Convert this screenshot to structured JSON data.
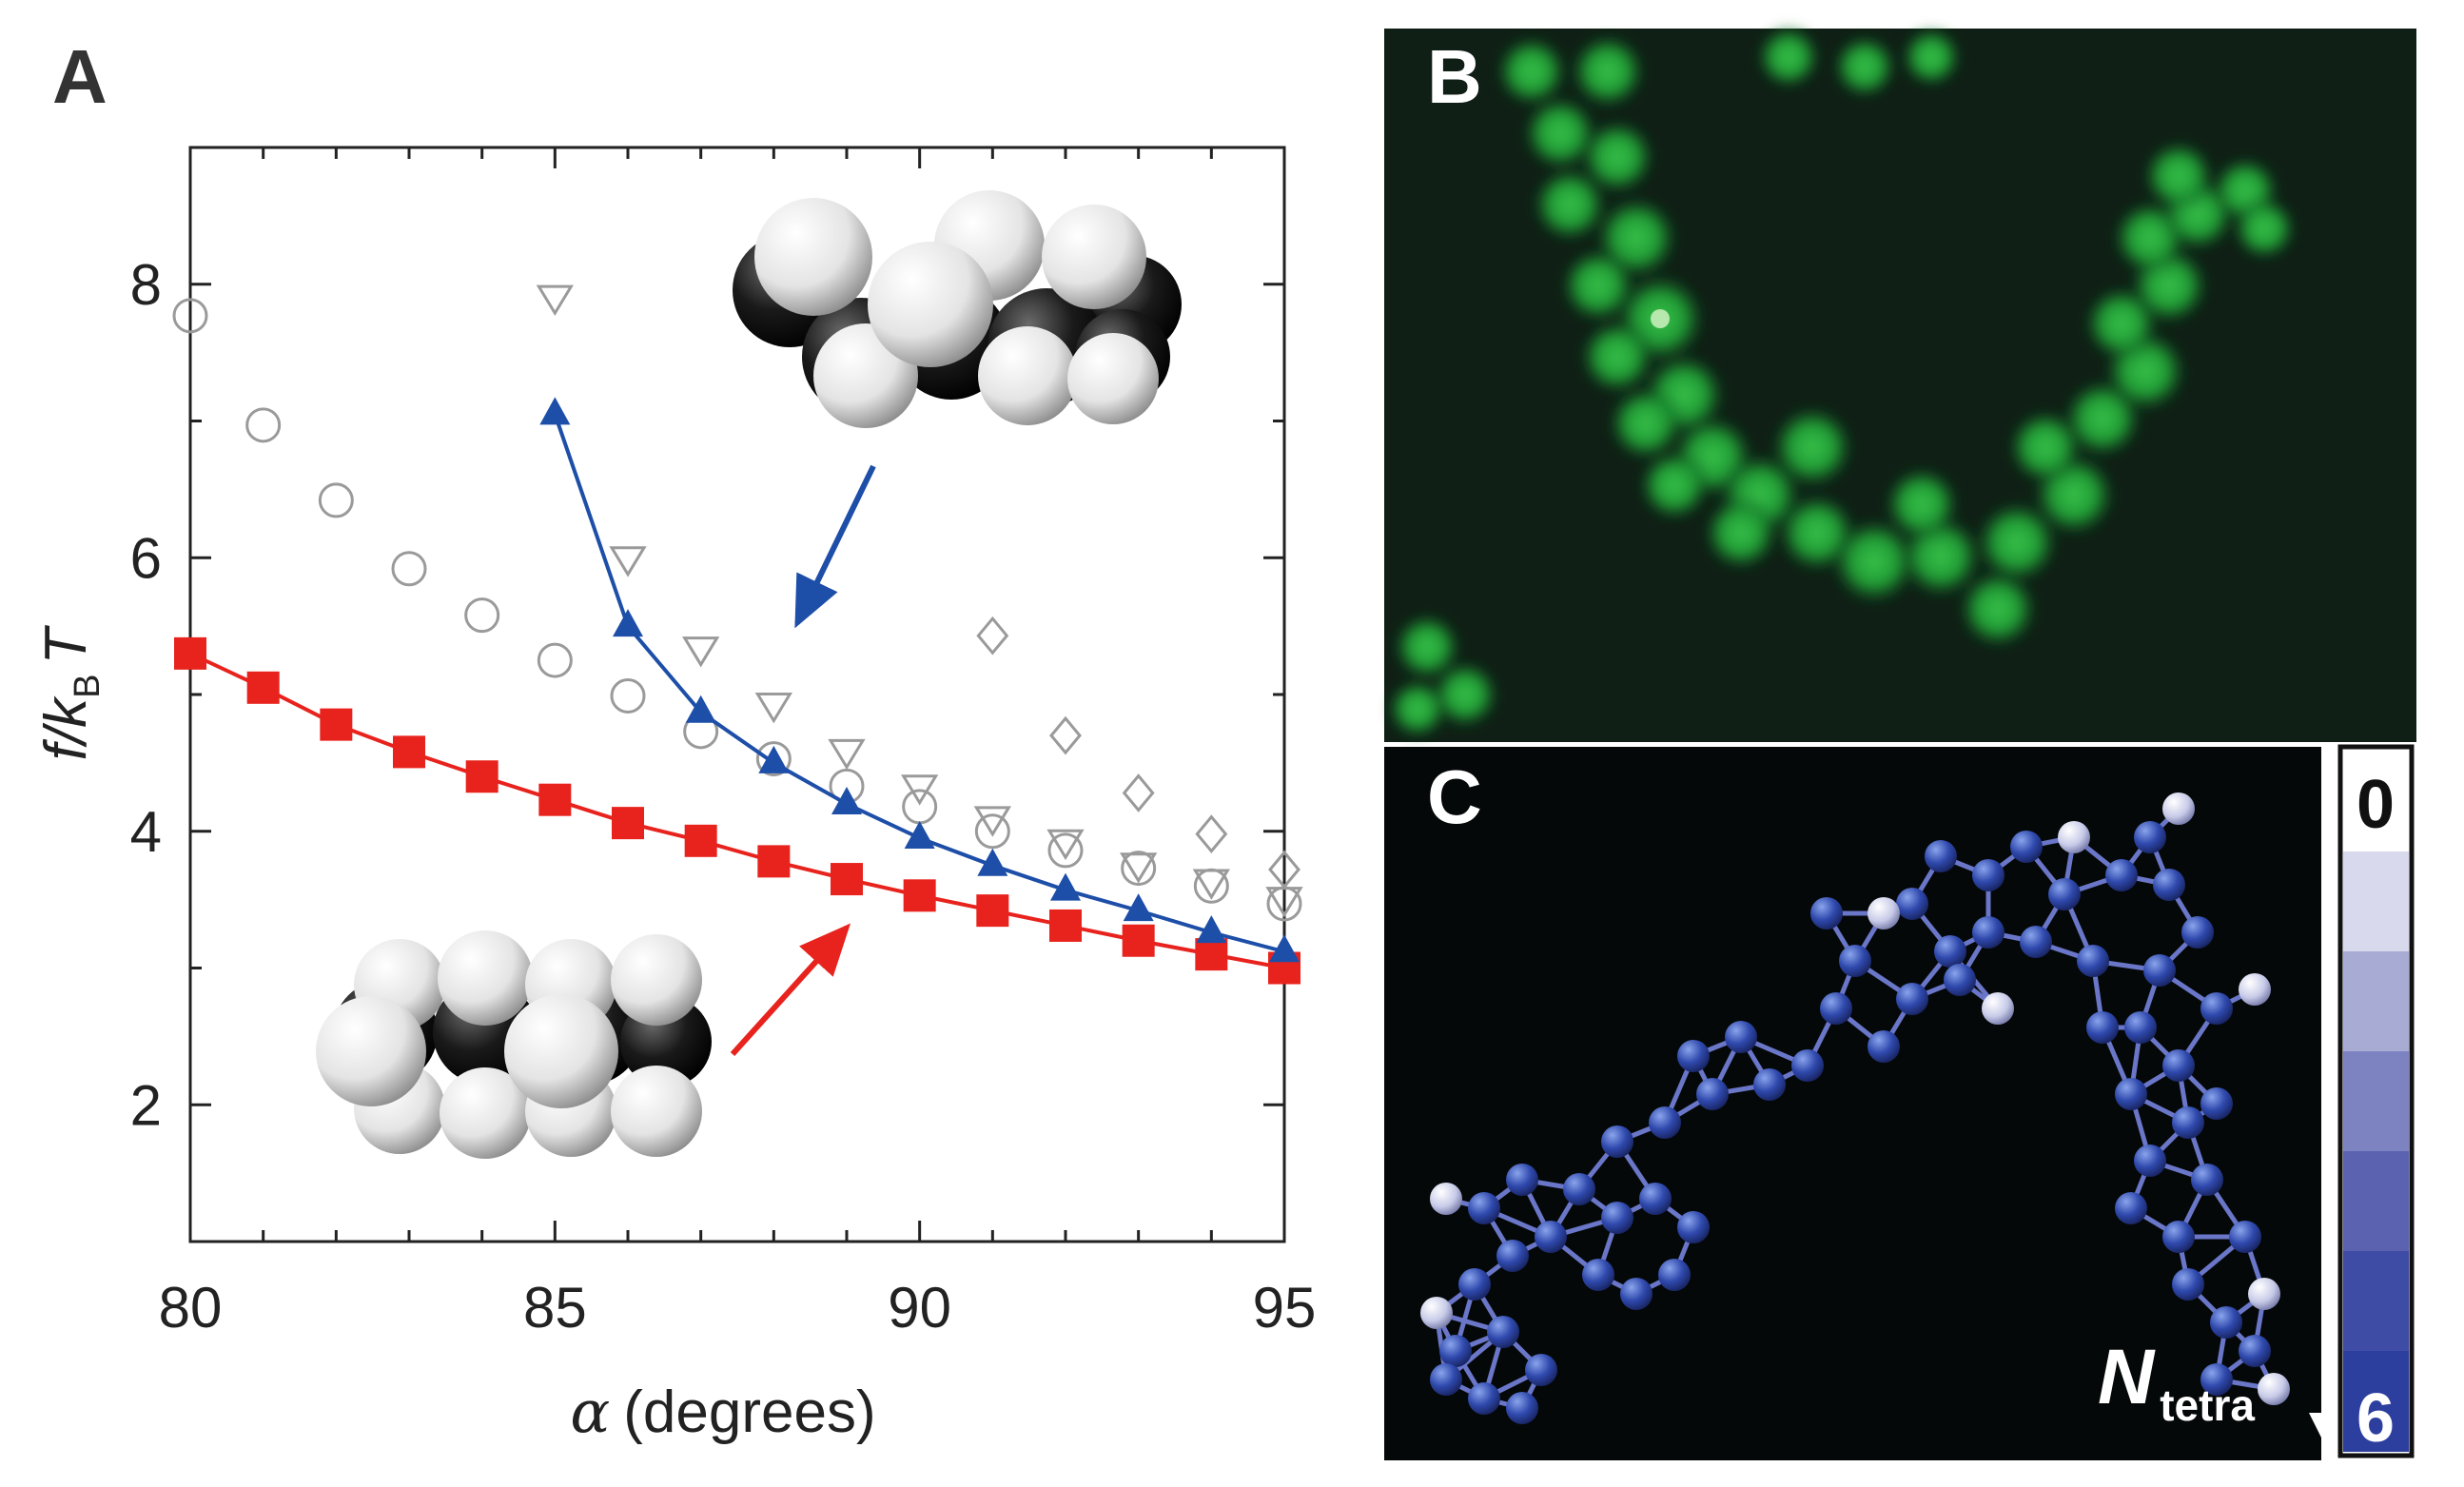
{
  "panel_labels": {
    "a": "A",
    "b": "B",
    "c": "C"
  },
  "chart_data": {
    "type": "scatter",
    "xlabel_symbol": "α",
    "xlabel_unit": "(degrees)",
    "ylabel_f": "f/",
    "ylabel_k": "k",
    "ylabel_sub": "B",
    "ylabel_T": "T",
    "xlim": [
      80,
      95
    ],
    "ylim": [
      1,
      9
    ],
    "xticks": [
      80,
      85,
      90,
      95
    ],
    "yticks": [
      2,
      4,
      6,
      8
    ],
    "grid": false,
    "series": [
      {
        "style": "red-filled-square-line",
        "color": "#e8231d",
        "x": [
          80,
          81,
          82,
          83,
          84,
          85,
          86,
          87,
          88,
          89,
          90,
          91,
          92,
          93,
          94,
          95
        ],
        "y": [
          5.3,
          5.05,
          4.78,
          4.58,
          4.4,
          4.23,
          4.06,
          3.93,
          3.78,
          3.65,
          3.53,
          3.42,
          3.31,
          3.2,
          3.1,
          3.0
        ]
      },
      {
        "style": "blue-filled-triangle-line",
        "color": "#1d4ea8",
        "x": [
          85,
          86,
          87,
          88,
          89,
          90,
          91,
          92,
          93,
          94,
          95
        ],
        "y": [
          7.05,
          5.5,
          4.87,
          4.5,
          4.2,
          3.95,
          3.75,
          3.57,
          3.42,
          3.26,
          3.12
        ]
      },
      {
        "style": "gray-open-circle",
        "color": "#9a9a9a",
        "x": [
          80,
          81,
          82,
          83,
          84,
          85,
          86,
          87,
          88,
          89,
          90,
          91,
          92,
          93,
          94,
          95
        ],
        "y": [
          7.77,
          6.97,
          6.42,
          5.92,
          5.58,
          5.25,
          4.99,
          4.73,
          4.53,
          4.33,
          4.18,
          4.0,
          3.86,
          3.73,
          3.6,
          3.47
        ]
      },
      {
        "style": "gray-open-down-triangle",
        "color": "#9a9a9a",
        "x": [
          85,
          86,
          87,
          88,
          89,
          90,
          91,
          92,
          93,
          94,
          95
        ],
        "y": [
          7.9,
          5.99,
          5.33,
          4.92,
          4.58,
          4.32,
          4.09,
          3.92,
          3.75,
          3.63,
          3.5
        ]
      },
      {
        "style": "gray-open-diamond",
        "color": "#9a9a9a",
        "x": [
          91,
          92,
          93,
          94,
          95
        ],
        "y": [
          5.43,
          4.7,
          4.28,
          3.98,
          3.72
        ]
      }
    ]
  },
  "colorbar": {
    "top_label": "0",
    "bottom_label": "6",
    "N": "N",
    "N_sub": "tetra"
  }
}
